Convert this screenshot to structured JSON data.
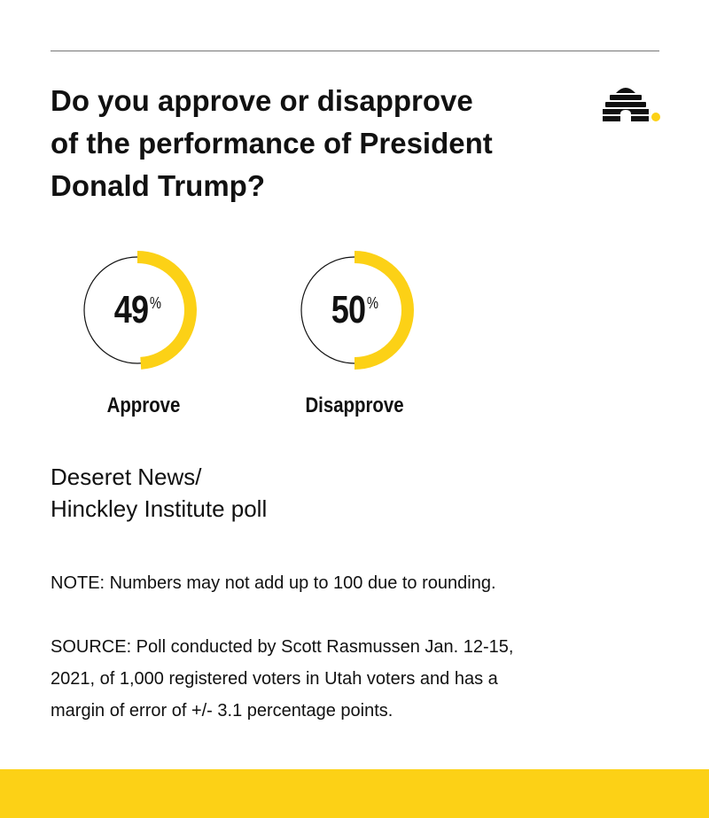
{
  "title_lines": [
    "Do you approve or disapprove",
    "of the performance of President",
    "Donald Trump?"
  ],
  "colors": {
    "accent": "#fcd116",
    "text": "#111111",
    "rule": "#777777"
  },
  "logo_icon": "beehive-icon",
  "chart_data": {
    "type": "pie",
    "series": [
      {
        "label": "Approve",
        "value": 49,
        "display": "49"
      },
      {
        "label": "Disapprove",
        "value": 50,
        "display": "50"
      }
    ],
    "unit": "%",
    "max": 100
  },
  "source_name_lines": [
    "Deseret News/",
    "Hinckley Institute poll"
  ],
  "note": "NOTE: Numbers may not add up to 100 due to rounding.",
  "source_lines": [
    "SOURCE: Poll conducted by Scott Rasmussen Jan. 12-15,",
    "2021, of 1,000 registered voters in Utah voters and has a",
    "margin of error of +/- 3.1 percentage points."
  ]
}
